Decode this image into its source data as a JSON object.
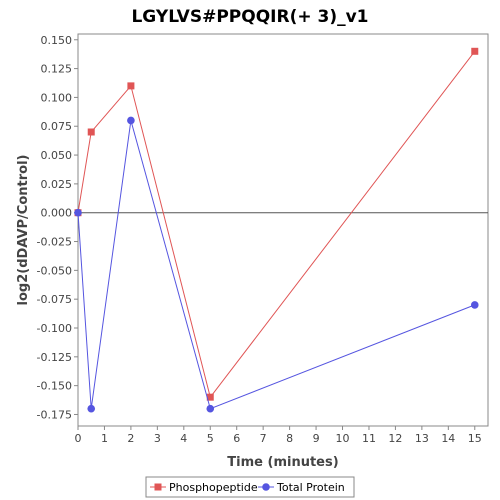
{
  "chart_data": {
    "type": "line",
    "title": "LGYLVS#PPQQIR(+ 3)_v1",
    "xlabel": "Time (minutes)",
    "ylabel": "log2(dDAVP/Control)",
    "xlim": [
      0,
      15.5
    ],
    "ylim": [
      -0.185,
      0.155
    ],
    "x_ticks": [
      0,
      1,
      2,
      3,
      4,
      5,
      6,
      7,
      8,
      9,
      10,
      11,
      12,
      13,
      14,
      15
    ],
    "y_ticks": [
      0.15,
      0.125,
      0.1,
      0.075,
      0.05,
      0.025,
      0.0,
      -0.025,
      -0.05,
      -0.075,
      -0.1,
      -0.125,
      -0.15,
      -0.175
    ],
    "x_tick_labels": [
      "0",
      "1",
      "2",
      "3",
      "4",
      "5",
      "6",
      "7",
      "8",
      "9",
      "10",
      "11",
      "12",
      "13",
      "14",
      "15"
    ],
    "y_tick_labels": [
      "0.150",
      "0.125",
      "0.100",
      "0.075",
      "0.050",
      "0.025",
      "0.000",
      "-0.025",
      "-0.050",
      "-0.075",
      "-0.100",
      "-0.125",
      "-0.150",
      "-0.175"
    ],
    "zero_line": true,
    "grid": false,
    "legend_position": "bottom",
    "series": [
      {
        "name": "Phosphopeptide",
        "marker": "square",
        "color": "#e05555",
        "x": [
          0,
          0.5,
          2,
          5,
          15
        ],
        "y": [
          0.0,
          0.07,
          0.11,
          -0.16,
          0.14
        ]
      },
      {
        "name": "Total Protein",
        "marker": "circle",
        "color": "#5555e0",
        "x": [
          0,
          0.5,
          2,
          5,
          15
        ],
        "y": [
          0.0,
          -0.17,
          0.08,
          -0.17,
          -0.08
        ]
      }
    ]
  }
}
